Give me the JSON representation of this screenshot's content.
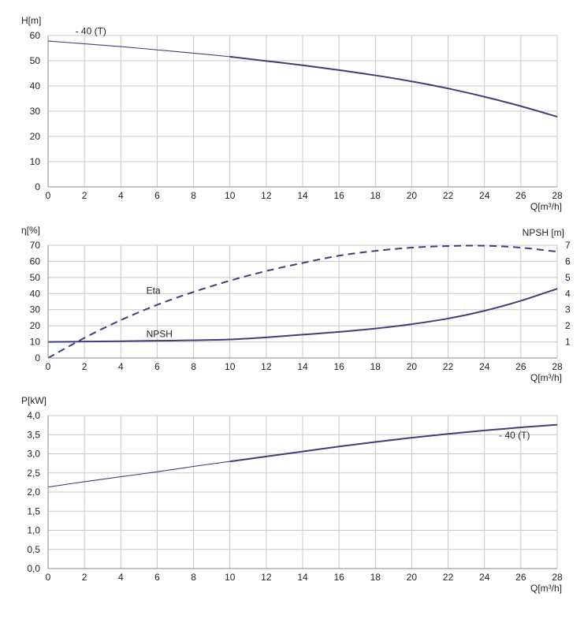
{
  "colors": {
    "curve": "#3d3f7a",
    "grid": "#c8c8c8",
    "text": "#222222"
  },
  "chart_data": [
    {
      "type": "line",
      "ylabel": "H[m]",
      "xlabel": "Q[m³/h]",
      "xlim": [
        0,
        28
      ],
      "ylim": [
        0,
        60
      ],
      "xticks": [
        0,
        2,
        4,
        6,
        8,
        10,
        12,
        14,
        16,
        18,
        20,
        22,
        24,
        26,
        28
      ],
      "xtick_labels": [
        "0",
        "2",
        "4",
        "6",
        "8",
        "10",
        "12",
        "14",
        "16",
        "18",
        "20",
        "22",
        "24",
        "26",
        "28"
      ],
      "yticks": [
        0,
        10,
        20,
        30,
        40,
        50,
        60
      ],
      "ytick_labels": [
        "0",
        "10",
        "20",
        "30",
        "40",
        "50",
        "60"
      ],
      "grid": true,
      "series": [
        {
          "name": "- 40 (T)",
          "label_at": [
            1.5,
            60.5
          ],
          "x": [
            0,
            2,
            4,
            6,
            8,
            10,
            12,
            14,
            16,
            18,
            20,
            22,
            24,
            26,
            28
          ],
          "y": [
            57.8,
            56.7,
            55.6,
            54.3,
            53.0,
            51.6,
            49.9,
            48.2,
            46.3,
            44.2,
            41.8,
            39.0,
            35.7,
            32.0,
            27.8
          ],
          "thin_until": 10
        }
      ]
    },
    {
      "type": "line",
      "ylabel": "η[%]",
      "ylabel_right": "NPSH [m]",
      "xlabel": "Q[m³/h]",
      "xlim": [
        0,
        28
      ],
      "ylim": [
        0,
        70
      ],
      "ylim_right": [
        0,
        7
      ],
      "xticks": [
        0,
        2,
        4,
        6,
        8,
        10,
        12,
        14,
        16,
        18,
        20,
        22,
        24,
        26,
        28
      ],
      "xtick_labels": [
        "0",
        "2",
        "4",
        "6",
        "8",
        "10",
        "12",
        "14",
        "16",
        "18",
        "20",
        "22",
        "24",
        "26",
        "28"
      ],
      "yticks": [
        0,
        10,
        20,
        30,
        40,
        50,
        60,
        70
      ],
      "ytick_labels": [
        "0",
        "10",
        "20",
        "30",
        "40",
        "50",
        "60",
        "70"
      ],
      "yticks_right": [
        1,
        2,
        3,
        4,
        5,
        6,
        7
      ],
      "ytick_labels_right": [
        "1",
        "2",
        "3",
        "4",
        "5",
        "6",
        "7"
      ],
      "grid": true,
      "series": [
        {
          "name": "Eta",
          "label_at": [
            5.4,
            40
          ],
          "dashed": true,
          "x": [
            0,
            2,
            4,
            6,
            8,
            10,
            12,
            14,
            16,
            18,
            20,
            22,
            24,
            26,
            28
          ],
          "y": [
            0,
            12.5,
            23.5,
            33.0,
            41.0,
            48.0,
            54.0,
            59.0,
            63.5,
            66.5,
            68.5,
            69.5,
            69.7,
            68.5,
            66.0
          ]
        },
        {
          "name": "NPSH",
          "label_at": [
            5.4,
            13
          ],
          "x": [
            0,
            2,
            4,
            6,
            8,
            10,
            12,
            14,
            16,
            18,
            20,
            22,
            24,
            26,
            28
          ],
          "y": [
            10.0,
            10.2,
            10.4,
            10.7,
            11.0,
            11.5,
            12.8,
            14.5,
            16.2,
            18.3,
            21.0,
            24.5,
            29.3,
            35.5,
            43.0
          ]
        }
      ]
    },
    {
      "type": "line",
      "ylabel": "P[kW]",
      "xlabel": "Q[m³/h]",
      "xlim": [
        0,
        28
      ],
      "ylim": [
        0,
        4
      ],
      "xticks": [
        0,
        2,
        4,
        6,
        8,
        10,
        12,
        14,
        16,
        18,
        20,
        22,
        24,
        26,
        28
      ],
      "xtick_labels": [
        "0",
        "2",
        "4",
        "6",
        "8",
        "10",
        "12",
        "14",
        "16",
        "18",
        "20",
        "22",
        "24",
        "26",
        "28"
      ],
      "yticks": [
        0,
        0.5,
        1,
        1.5,
        2,
        2.5,
        3,
        3.5,
        4
      ],
      "ytick_labels": [
        "0,0",
        "0,5",
        "1,0",
        "1,5",
        "2,0",
        "2,5",
        "3,0",
        "3,5",
        "4,0"
      ],
      "grid": true,
      "series": [
        {
          "name": "- 40 (T)",
          "label_at": [
            24.8,
            3.4
          ],
          "x": [
            0,
            2,
            4,
            6,
            8,
            10,
            12,
            14,
            16,
            18,
            20,
            22,
            24,
            26,
            28
          ],
          "y": [
            2.13,
            2.27,
            2.4,
            2.53,
            2.67,
            2.8,
            2.93,
            3.06,
            3.19,
            3.31,
            3.42,
            3.52,
            3.61,
            3.69,
            3.76
          ],
          "thin_until": 10
        }
      ]
    }
  ]
}
